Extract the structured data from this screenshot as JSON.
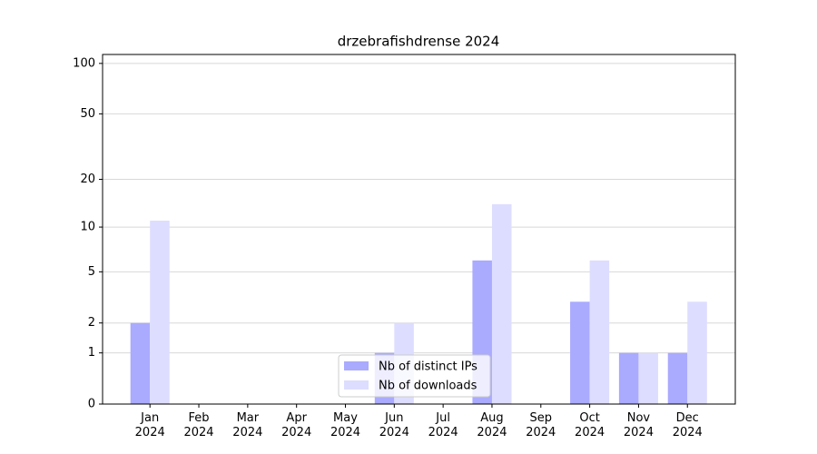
{
  "chart_data": {
    "type": "bar",
    "title": "drzebrafishdrense 2024",
    "categories": [
      "Jan 2024",
      "Feb 2024",
      "Mar 2024",
      "Apr 2024",
      "May 2024",
      "Jun 2024",
      "Jul 2024",
      "Aug 2024",
      "Sep 2024",
      "Oct 2024",
      "Nov 2024",
      "Dec 2024"
    ],
    "series": [
      {
        "name": "Nb of distinct IPs",
        "color": "#aaaaff",
        "values": [
          2,
          0,
          0,
          0,
          0,
          1,
          0,
          6,
          0,
          3,
          1,
          1
        ]
      },
      {
        "name": "Nb of downloads",
        "color": "#ddddff",
        "values": [
          11,
          0,
          0,
          0,
          0,
          2,
          0,
          14,
          0,
          6,
          1,
          3
        ]
      }
    ],
    "yscale": "log1p",
    "ylim": [
      0,
      113
    ],
    "yticks": [
      0,
      1,
      2,
      5,
      10,
      20,
      50,
      100
    ],
    "grid": true,
    "legend": "lower center"
  }
}
